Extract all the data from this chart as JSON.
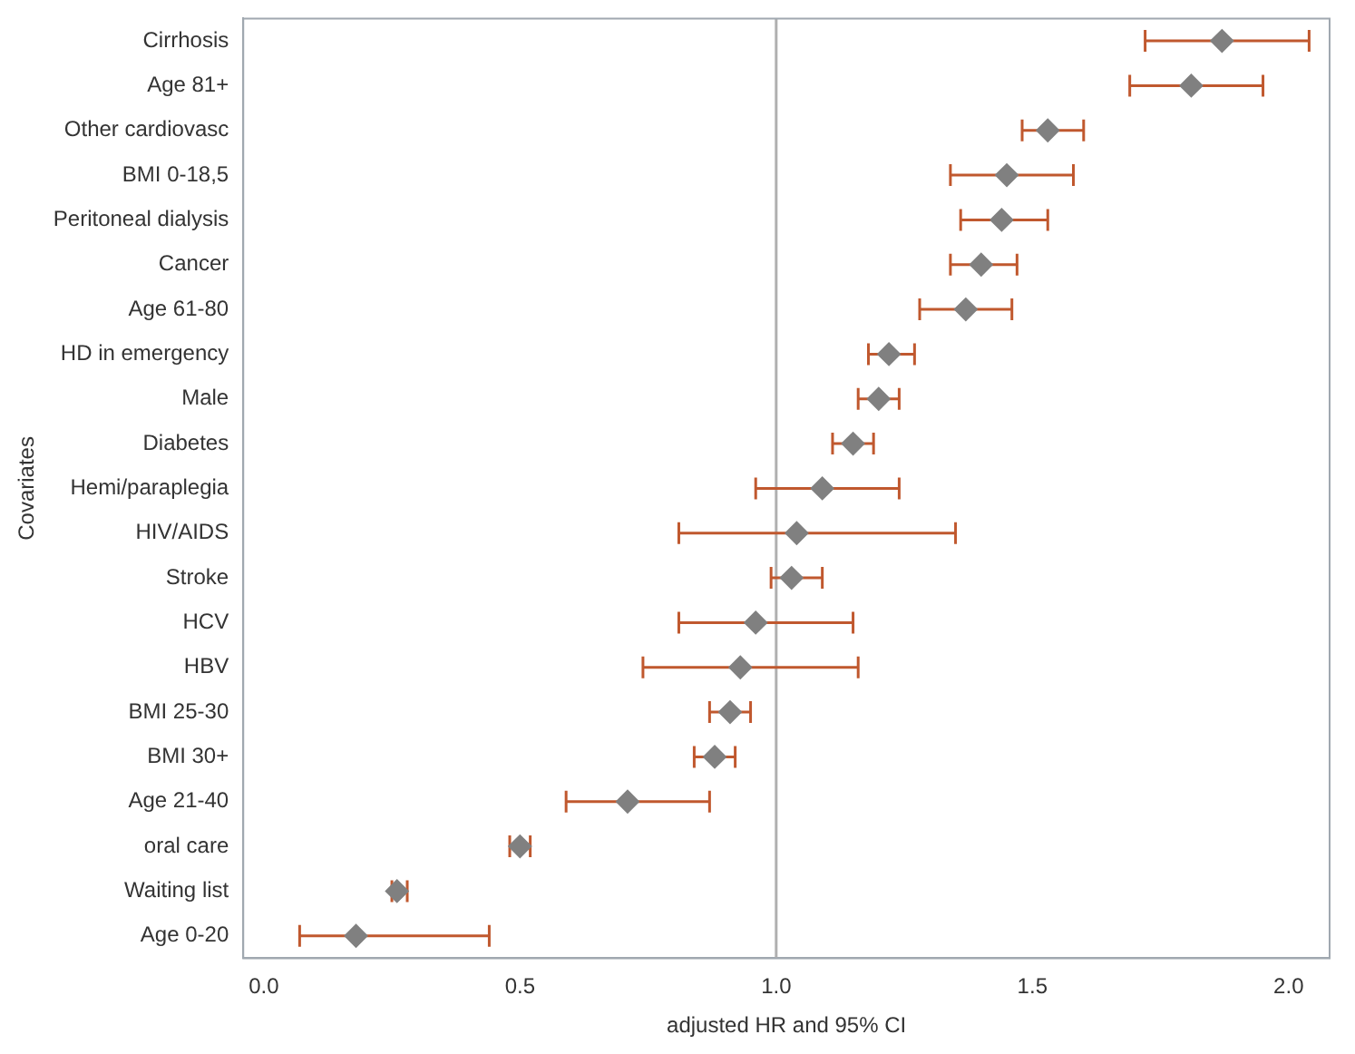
{
  "chart_data": {
    "type": "scatter",
    "xlabel": "adjusted HR and 95% CI",
    "ylabel": "Covariates",
    "categories": [
      "Cirrhosis",
      "Age 81+",
      "Other cardiovasc",
      "BMI 0-18,5",
      "Peritoneal dialysis",
      "Cancer",
      "Age 61-80",
      "HD in emergency",
      "Male",
      "Diabetes",
      "Hemi/paraplegia",
      "HIV/AIDS",
      "Stroke",
      "HCV",
      "HBV",
      "BMI 25-30",
      "BMI 30+",
      "Age 21-40",
      "oral care",
      "Waiting list",
      "Age 0-20"
    ],
    "orientation": "horizontal",
    "values": [
      1.87,
      1.81,
      1.53,
      1.45,
      1.44,
      1.4,
      1.37,
      1.22,
      1.2,
      1.15,
      1.09,
      1.04,
      1.03,
      0.96,
      0.93,
      0.91,
      0.88,
      0.71,
      0.5,
      0.26,
      0.18
    ],
    "errors": [
      [
        1.72,
        2.04
      ],
      [
        1.69,
        1.95
      ],
      [
        1.48,
        1.6
      ],
      [
        1.34,
        1.58
      ],
      [
        1.36,
        1.53
      ],
      [
        1.34,
        1.47
      ],
      [
        1.28,
        1.46
      ],
      [
        1.18,
        1.27
      ],
      [
        1.16,
        1.24
      ],
      [
        1.11,
        1.19
      ],
      [
        0.96,
        1.24
      ],
      [
        0.81,
        1.35
      ],
      [
        0.99,
        1.09
      ],
      [
        0.81,
        1.15
      ],
      [
        0.74,
        1.16
      ],
      [
        0.87,
        0.95
      ],
      [
        0.84,
        0.92
      ],
      [
        0.59,
        0.87
      ],
      [
        0.48,
        0.52
      ],
      [
        0.25,
        0.28
      ],
      [
        0.07,
        0.44
      ]
    ],
    "color": "#808080",
    "marker": "diamond",
    "grid": false,
    "legend": false,
    "xlim": [
      -0.04,
      2.08
    ],
    "xticks": [
      {
        "value": 0,
        "label": "0.0"
      },
      {
        "value": 0.5,
        "label": "0.5"
      },
      {
        "value": 1,
        "label": "1.0"
      },
      {
        "value": 1.5,
        "label": "1.5"
      },
      {
        "value": 2,
        "label": "2.0"
      }
    ],
    "ref_lines": [
      {
        "axis": "x",
        "value": 1,
        "color": "#b0b0b0"
      }
    ]
  }
}
